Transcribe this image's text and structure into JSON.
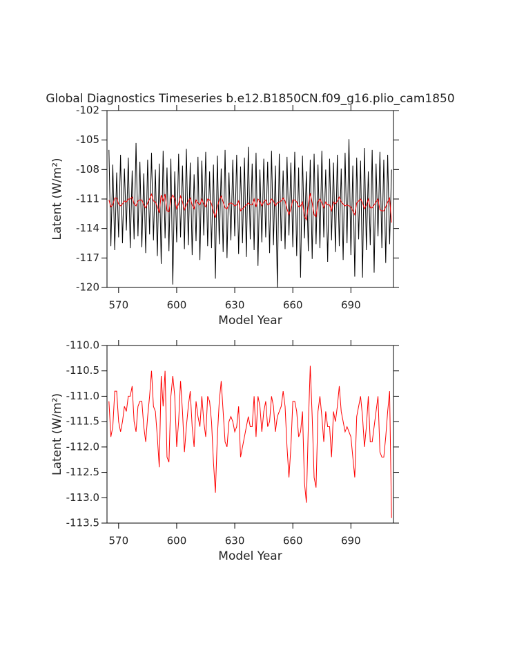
{
  "chart_data": [
    {
      "type": "line",
      "title": "Global Diagnostics Timeseries b.e12.B1850CN.f09_g16.plio_cam1850",
      "xlabel": "Model Year",
      "ylabel": "Latent (W/m²)",
      "xlim": [
        564,
        712
      ],
      "xticks": [
        570,
        600,
        630,
        660,
        690
      ],
      "ylim": [
        -120,
        -102
      ],
      "yticks": [
        -120,
        -117,
        -114,
        -111,
        -108,
        -105,
        -102
      ],
      "x": [
        565,
        566,
        567,
        568,
        569,
        570,
        571,
        572,
        573,
        574,
        575,
        576,
        577,
        578,
        579,
        580,
        581,
        582,
        583,
        584,
        585,
        586,
        587,
        588,
        589,
        590,
        591,
        592,
        593,
        594,
        595,
        596,
        597,
        598,
        599,
        600,
        601,
        602,
        603,
        604,
        605,
        606,
        607,
        608,
        609,
        610,
        611,
        612,
        613,
        614,
        615,
        616,
        617,
        618,
        619,
        620,
        621,
        622,
        623,
        624,
        625,
        626,
        627,
        628,
        629,
        630,
        631,
        632,
        633,
        634,
        635,
        636,
        637,
        638,
        639,
        640,
        641,
        642,
        643,
        644,
        645,
        646,
        647,
        648,
        649,
        650,
        651,
        652,
        653,
        654,
        655,
        656,
        657,
        658,
        659,
        660,
        661,
        662,
        663,
        664,
        665,
        666,
        667,
        668,
        669,
        670,
        671,
        672,
        673,
        674,
        675,
        676,
        677,
        678,
        679,
        680,
        681,
        682,
        683,
        684,
        685,
        686,
        687,
        688,
        689,
        690,
        691,
        692,
        693,
        694,
        695,
        696,
        697,
        698,
        699,
        700,
        701,
        702,
        703,
        704,
        705,
        706,
        707,
        708,
        709,
        710,
        711
      ],
      "series": [
        {
          "color": "#000000",
          "values": [
            -106.0,
            -115.8,
            -107.5,
            -116.2,
            -108.3,
            -114.9,
            -106.5,
            -115.5,
            -107.9,
            -114.2,
            -106.8,
            -116.0,
            -108.1,
            -115.1,
            -105.3,
            -114.8,
            -107.2,
            -115.9,
            -108.4,
            -116.5,
            -107.0,
            -114.6,
            -106.3,
            -115.2,
            -108.0,
            -116.8,
            -107.4,
            -117.6,
            -106.1,
            -115.0,
            -107.8,
            -116.3,
            -106.9,
            -119.7,
            -108.2,
            -115.4,
            -106.4,
            -114.9,
            -107.6,
            -116.1,
            -105.9,
            -115.7,
            -107.3,
            -116.7,
            -108.5,
            -115.3,
            -106.7,
            -117.2,
            -107.1,
            -114.7,
            -106.2,
            -115.8,
            -108.2,
            -116.0,
            -107.5,
            -119.1,
            -106.6,
            -115.6,
            -107.9,
            -116.4,
            -106.0,
            -117.0,
            -108.3,
            -115.2,
            -107.0,
            -114.8,
            -106.5,
            -116.6,
            -107.7,
            -115.5,
            -106.8,
            -116.9,
            -105.7,
            -115.1,
            -107.4,
            -116.2,
            -106.3,
            -117.8,
            -108.0,
            -115.4,
            -106.9,
            -114.9,
            -107.2,
            -116.5,
            -106.1,
            -115.7,
            -107.6,
            -120.0,
            -106.4,
            -115.3,
            -108.1,
            -116.1,
            -106.7,
            -114.7,
            -107.3,
            -115.9,
            -106.2,
            -116.8,
            -107.8,
            -119.0,
            -106.6,
            -115.0,
            -108.2,
            -116.3,
            -107.0,
            -117.1,
            -106.4,
            -115.6,
            -107.5,
            -116.0,
            -106.1,
            -114.9,
            -108.0,
            -117.4,
            -106.9,
            -115.2,
            -107.3,
            -116.4,
            -106.5,
            -115.8,
            -107.9,
            -117.2,
            -106.3,
            -115.5,
            -104.9,
            -116.7,
            -107.6,
            -118.9,
            -106.8,
            -115.1,
            -107.1,
            -119.0,
            -105.8,
            -116.2,
            -108.2,
            -115.7,
            -106.0,
            -118.5,
            -107.4,
            -114.8,
            -106.2,
            -116.0,
            -107.0,
            -117.5,
            -106.5,
            -115.6,
            -108.0
          ]
        },
        {
          "color": "#ff0000",
          "values": [
            -111.1,
            -111.8,
            -111.6,
            -110.9,
            -110.9,
            -111.5,
            -111.7,
            -111.5,
            -111.2,
            -111.3,
            -111.0,
            -111.0,
            -110.8,
            -111.5,
            -111.7,
            -111.2,
            -111.1,
            -111.1,
            -111.6,
            -111.9,
            -111.4,
            -111.0,
            -110.5,
            -111.2,
            -111.3,
            -111.8,
            -112.4,
            -110.6,
            -111.2,
            -110.5,
            -112.2,
            -112.3,
            -111.0,
            -110.6,
            -111.0,
            -112.0,
            -111.5,
            -110.7,
            -111.3,
            -112.1,
            -111.6,
            -111.2,
            -110.9,
            -111.6,
            -112.0,
            -111.1,
            -111.4,
            -111.6,
            -111.0,
            -111.5,
            -111.8,
            -111.0,
            -111.1,
            -111.5,
            -112.3,
            -112.9,
            -111.8,
            -111.1,
            -110.7,
            -111.3,
            -111.9,
            -112.0,
            -111.5,
            -111.4,
            -111.5,
            -111.7,
            -111.6,
            -111.2,
            -112.2,
            -112.0,
            -111.8,
            -111.6,
            -111.4,
            -111.6,
            -111.6,
            -111.0,
            -111.8,
            -111.0,
            -111.2,
            -111.7,
            -111.3,
            -111.1,
            -111.6,
            -111.5,
            -111.0,
            -111.2,
            -111.7,
            -111.4,
            -111.3,
            -111.2,
            -110.9,
            -111.2,
            -112.0,
            -112.6,
            -112.0,
            -111.1,
            -111.1,
            -111.3,
            -111.8,
            -111.7,
            -111.3,
            -112.7,
            -113.1,
            -111.6,
            -110.4,
            -111.4,
            -112.6,
            -112.8,
            -111.3,
            -111.0,
            -111.4,
            -111.9,
            -111.3,
            -111.6,
            -111.6,
            -112.2,
            -111.3,
            -111.5,
            -111.2,
            -110.8,
            -111.3,
            -111.5,
            -111.7,
            -111.6,
            -111.7,
            -111.8,
            -112.2,
            -112.6,
            -111.4,
            -111.2,
            -111.0,
            -111.4,
            -112.0,
            -111.6,
            -111.0,
            -111.9,
            -111.9,
            -111.6,
            -111.3,
            -111.0,
            -112.1,
            -112.2,
            -112.2,
            -111.8,
            -111.3,
            -110.9,
            -113.4
          ]
        }
      ]
    },
    {
      "type": "line",
      "xlabel": "Model Year",
      "ylabel": "Latent (W/m²)",
      "xlim": [
        564,
        712
      ],
      "xticks": [
        570,
        600,
        630,
        660,
        690
      ],
      "ylim": [
        -113.5,
        -110
      ],
      "yticks": [
        {
          "value": -110,
          "label": "-110.0"
        },
        -110.5,
        {
          "value": -111,
          "label": "-111.0"
        },
        -111.5,
        {
          "value": -112,
          "label": "-112.0"
        },
        -112.5,
        {
          "value": -113,
          "label": "-113.0"
        },
        -113.5
      ],
      "x": [
        565,
        566,
        567,
        568,
        569,
        570,
        571,
        572,
        573,
        574,
        575,
        576,
        577,
        578,
        579,
        580,
        581,
        582,
        583,
        584,
        585,
        586,
        587,
        588,
        589,
        590,
        591,
        592,
        593,
        594,
        595,
        596,
        597,
        598,
        599,
        600,
        601,
        602,
        603,
        604,
        605,
        606,
        607,
        608,
        609,
        610,
        611,
        612,
        613,
        614,
        615,
        616,
        617,
        618,
        619,
        620,
        621,
        622,
        623,
        624,
        625,
        626,
        627,
        628,
        629,
        630,
        631,
        632,
        633,
        634,
        635,
        636,
        637,
        638,
        639,
        640,
        641,
        642,
        643,
        644,
        645,
        646,
        647,
        648,
        649,
        650,
        651,
        652,
        653,
        654,
        655,
        656,
        657,
        658,
        659,
        660,
        661,
        662,
        663,
        664,
        665,
        666,
        667,
        668,
        669,
        670,
        671,
        672,
        673,
        674,
        675,
        676,
        677,
        678,
        679,
        680,
        681,
        682,
        683,
        684,
        685,
        686,
        687,
        688,
        689,
        690,
        691,
        692,
        693,
        694,
        695,
        696,
        697,
        698,
        699,
        700,
        701,
        702,
        703,
        704,
        705,
        706,
        707,
        708,
        709,
        710,
        711
      ],
      "series": [
        {
          "color": "#ff0000",
          "values": [
            -111.1,
            -111.8,
            -111.6,
            -110.9,
            -110.9,
            -111.5,
            -111.7,
            -111.5,
            -111.2,
            -111.3,
            -111.0,
            -111.0,
            -110.8,
            -111.5,
            -111.7,
            -111.2,
            -111.1,
            -111.1,
            -111.6,
            -111.9,
            -111.4,
            -111.0,
            -110.5,
            -111.2,
            -111.3,
            -111.8,
            -112.4,
            -110.6,
            -111.2,
            -110.5,
            -112.2,
            -112.3,
            -111.0,
            -110.6,
            -111.0,
            -112.0,
            -111.5,
            -110.7,
            -111.3,
            -112.1,
            -111.6,
            -111.2,
            -110.9,
            -111.6,
            -112.0,
            -111.1,
            -111.4,
            -111.6,
            -111.0,
            -111.5,
            -111.8,
            -111.0,
            -111.1,
            -111.5,
            -112.3,
            -112.9,
            -111.8,
            -111.1,
            -110.7,
            -111.3,
            -111.9,
            -112.0,
            -111.5,
            -111.4,
            -111.5,
            -111.7,
            -111.6,
            -111.2,
            -112.2,
            -112.0,
            -111.8,
            -111.6,
            -111.4,
            -111.6,
            -111.6,
            -111.0,
            -111.8,
            -111.0,
            -111.2,
            -111.7,
            -111.3,
            -111.1,
            -111.6,
            -111.5,
            -111.0,
            -111.2,
            -111.7,
            -111.4,
            -111.3,
            -111.2,
            -110.9,
            -111.2,
            -112.0,
            -112.6,
            -112.0,
            -111.1,
            -111.1,
            -111.3,
            -111.8,
            -111.7,
            -111.3,
            -112.7,
            -113.1,
            -111.6,
            -110.4,
            -111.4,
            -112.6,
            -112.8,
            -111.3,
            -111.0,
            -111.4,
            -111.9,
            -111.3,
            -111.6,
            -111.6,
            -112.2,
            -111.3,
            -111.5,
            -111.2,
            -110.8,
            -111.3,
            -111.5,
            -111.7,
            -111.6,
            -111.7,
            -111.8,
            -112.2,
            -112.6,
            -111.4,
            -111.2,
            -111.0,
            -111.4,
            -112.0,
            -111.6,
            -111.0,
            -111.9,
            -111.9,
            -111.6,
            -111.3,
            -111.0,
            -112.1,
            -112.2,
            -112.2,
            -111.8,
            -111.3,
            -110.9,
            -113.4
          ]
        }
      ]
    }
  ]
}
